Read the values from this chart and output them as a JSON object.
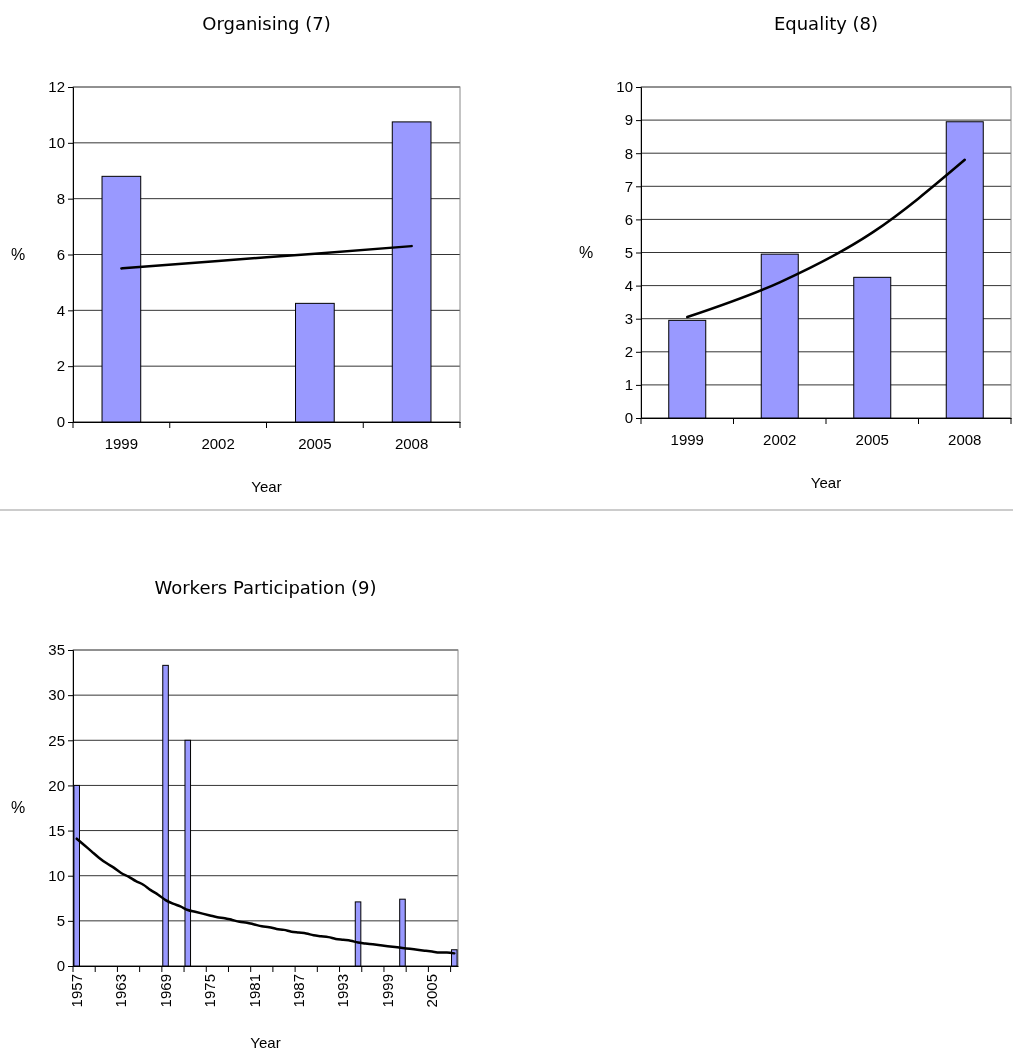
{
  "chart_data": [
    {
      "type": "bar",
      "title": "Organising (7)",
      "xlabel": "Year",
      "ylabel": "%",
      "categories": [
        "1999",
        "2002",
        "2005",
        "2008"
      ],
      "ylim": [
        0,
        12
      ],
      "yticks": [
        0,
        2,
        4,
        6,
        8,
        10,
        12
      ],
      "grid": "y",
      "series": [
        {
          "color": "#9999ff",
          "values": [
            8.8,
            null,
            4.25,
            10.75
          ]
        },
        {
          "type": "line",
          "color": "#000000",
          "values": [
            5.5,
            5.77,
            6.03,
            6.3
          ]
        }
      ]
    },
    {
      "type": "bar",
      "title": "Equality (8)",
      "xlabel": "Year",
      "ylabel": "%",
      "categories": [
        "1999",
        "2002",
        "2005",
        "2008"
      ],
      "ylim": [
        0,
        10
      ],
      "yticks": [
        0,
        1,
        2,
        3,
        4,
        5,
        6,
        7,
        8,
        9,
        10
      ],
      "grid": "y",
      "series": [
        {
          "color": "#9999ff",
          "values": [
            2.95,
            4.95,
            4.25,
            8.95
          ]
        },
        {
          "type": "line",
          "color": "#000000",
          "values": [
            3.05,
            4.1,
            5.6,
            7.8
          ]
        }
      ]
    },
    {
      "type": "bar",
      "title": "Workers Participation (9)",
      "xlabel": "Year",
      "ylabel": "%",
      "categories": [
        "1957",
        null,
        null,
        null,
        null,
        null,
        "1963",
        null,
        null,
        null,
        null,
        null,
        "1969",
        null,
        null,
        null,
        null,
        null,
        "1975",
        null,
        null,
        null,
        null,
        null,
        "1981",
        null,
        null,
        null,
        null,
        null,
        "1987",
        null,
        null,
        null,
        null,
        null,
        "1993",
        null,
        null,
        null,
        null,
        null,
        "1999",
        null,
        null,
        null,
        null,
        null,
        "2005",
        null,
        null,
        null
      ],
      "ylim": [
        0,
        35
      ],
      "yticks": [
        0,
        5,
        10,
        15,
        20,
        25,
        30,
        35
      ],
      "grid": "y",
      "series": [
        {
          "color": "#9999ff",
          "values": [
            20,
            null,
            null,
            null,
            null,
            null,
            null,
            null,
            null,
            null,
            null,
            null,
            33.3,
            null,
            null,
            25,
            null,
            null,
            null,
            null,
            null,
            null,
            null,
            null,
            null,
            null,
            null,
            null,
            null,
            null,
            null,
            null,
            null,
            null,
            null,
            null,
            null,
            null,
            7.1,
            null,
            null,
            null,
            null,
            null,
            7.4,
            null,
            null,
            null,
            null,
            null,
            null,
            1.8
          ]
        },
        {
          "type": "line",
          "color": "#000000",
          "values": [
            14.1,
            13.4,
            12.7,
            12.0,
            11.4,
            10.9,
            10.3,
            9.9,
            9.4,
            9.0,
            8.4,
            7.9,
            7.3,
            6.9,
            6.6,
            6.2,
            6.0,
            5.8,
            5.6,
            5.4,
            5.3,
            5.1,
            4.9,
            4.8,
            4.6,
            4.4,
            4.3,
            4.1,
            4.0,
            3.8,
            3.7,
            3.6,
            3.4,
            3.3,
            3.2,
            3.0,
            2.9,
            2.8,
            2.6,
            2.5,
            2.4,
            2.3,
            2.2,
            2.1,
            2.0,
            1.9,
            1.8,
            1.7,
            1.6,
            1.5,
            1.5,
            1.4
          ]
        }
      ]
    }
  ]
}
